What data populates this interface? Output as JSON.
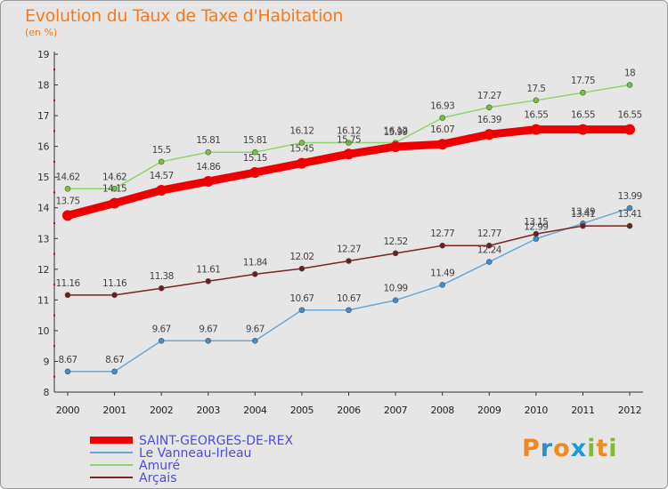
{
  "title": "Evolution du Taux de Taxe d'Habitation",
  "subtitle": "(en %)",
  "logo": {
    "letters": [
      "P",
      "r",
      "o",
      "x",
      "i",
      "t",
      "i"
    ],
    "colors": [
      "#f08a1e",
      "#2c8fd0",
      "#f08a1e",
      "#1a9ad6",
      "#7cbf2a",
      "#f08a1e",
      "#7cbf2a"
    ]
  },
  "chart_data": {
    "type": "line",
    "title": "Evolution du Taux de Taxe d'Habitation",
    "ylabel": "(en %)",
    "xlabel": "",
    "ylim": [
      8,
      19
    ],
    "yticks": [
      "8",
      "9",
      "10",
      "11",
      "12",
      "13",
      "14",
      "15",
      "16",
      "17",
      "18",
      "19"
    ],
    "x": [
      "2000",
      "2001",
      "2002",
      "2003",
      "2004",
      "2005",
      "2006",
      "2007",
      "2008",
      "2009",
      "2010",
      "2011",
      "2012"
    ],
    "grid": false,
    "legend_position": "bottom-left",
    "series": [
      {
        "name": "SAINT-GEORGES-DE-REX",
        "color": "#ee0000",
        "width": 9,
        "marker": 6,
        "values": [
          13.75,
          14.15,
          14.57,
          14.86,
          15.15,
          15.45,
          15.75,
          15.99,
          16.07,
          16.39,
          16.55,
          16.55,
          16.55
        ],
        "labels": [
          "13.75",
          "14.15",
          "14.57",
          "14.86",
          "15.15",
          "15.45",
          "15.75",
          "15.99",
          "16.07",
          "16.39",
          "16.55",
          "16.55",
          "16.55"
        ]
      },
      {
        "name": "Le Vanneau-Irleau",
        "color": "#6aa7d6",
        "marker_color": "#3d8dd1",
        "width": 1.5,
        "marker": 3,
        "values": [
          8.67,
          8.67,
          9.67,
          9.67,
          9.67,
          10.67,
          10.67,
          10.99,
          11.49,
          12.24,
          12.99,
          13.49,
          13.99
        ],
        "labels": [
          "8.67",
          "8.67",
          "9.67",
          "9.67",
          "9.67",
          "10.67",
          "10.67",
          "10.99",
          "11.49",
          "12.24",
          "12.99",
          "13.49",
          "13.99"
        ]
      },
      {
        "name": "Amuré",
        "color": "#90d36a",
        "marker_color": "#72c23d",
        "width": 1.5,
        "marker": 3,
        "values": [
          14.62,
          14.62,
          15.5,
          15.81,
          15.81,
          16.12,
          16.12,
          16.12,
          16.93,
          17.27,
          17.5,
          17.75,
          18
        ],
        "labels": [
          "14.62",
          "14.62",
          "15.5",
          "15.81",
          "15.81",
          "16.12",
          "16.12",
          "16.12",
          "16.93",
          "17.27",
          "17.5",
          "17.75",
          "18"
        ]
      },
      {
        "name": "Arçais",
        "color": "#7a2424",
        "marker_color": "#6a1e1e",
        "width": 1.5,
        "marker": 3,
        "values": [
          11.16,
          11.16,
          11.38,
          11.61,
          11.84,
          12.02,
          12.27,
          12.52,
          12.77,
          12.77,
          13.15,
          13.41,
          13.41
        ],
        "labels": [
          "11.16",
          "11.16",
          "11.38",
          "11.61",
          "11.84",
          "12.02",
          "12.27",
          "12.52",
          "12.77",
          "12.77",
          "13.15",
          "13.41",
          "13.41"
        ]
      }
    ]
  }
}
